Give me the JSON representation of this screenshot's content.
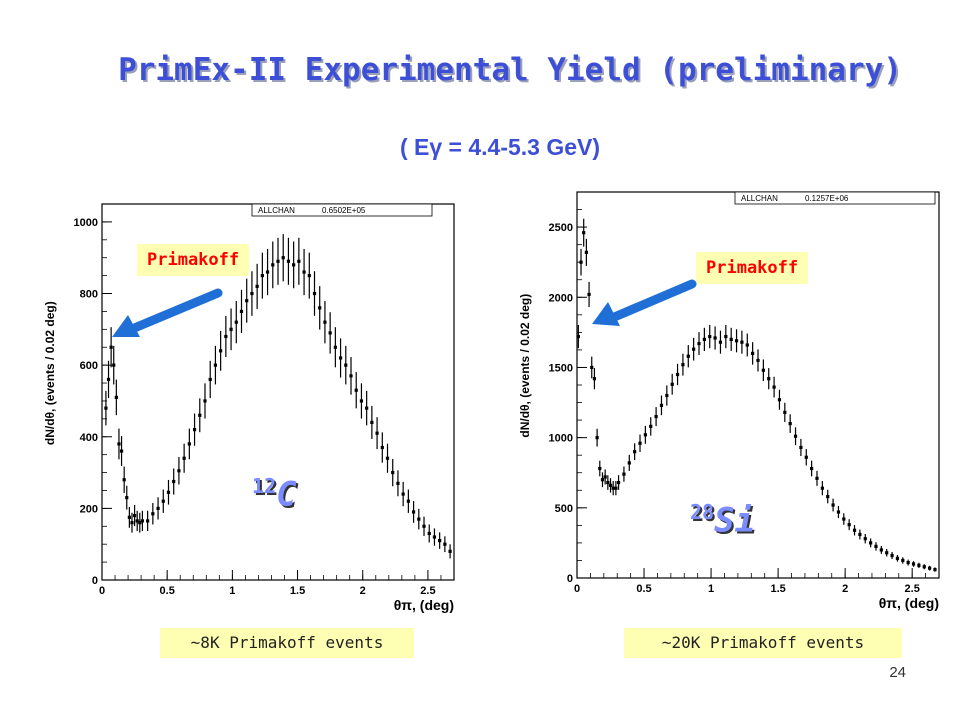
{
  "slide": {
    "title": "PrimEx-II Experimental Yield (preliminary)",
    "subtitle": "( Eγ = 4.4-5.3 GeV)",
    "page_number": "24"
  },
  "panels": [
    {
      "nucleus_mass": "12",
      "nucleus_symbol": "C",
      "primakoff_label": "Primakoff",
      "events_label": "~8K Primakoff events",
      "statbox_name": "ALLCHAN",
      "statbox_value": "0.6502E+05"
    },
    {
      "nucleus_mass": "28",
      "nucleus_symbol": "Si",
      "primakoff_label": "Primakoff",
      "events_label": "~20K Primakoff events",
      "statbox_name": "ALLCHAN",
      "statbox_value": "0.1257E+06"
    }
  ],
  "colors": {
    "title": "#3d4fd6",
    "arrow": "#1f6fd6",
    "label_bg": "#ffffb3",
    "label_text": "#ff0000"
  },
  "chart_data": [
    {
      "type": "scatter",
      "title": "",
      "xlabel": "θπ, (deg)",
      "ylabel": "dN/dθ, (events / 0.02 deg)",
      "xlim": [
        0,
        2.7
      ],
      "ylim": [
        0,
        1050
      ],
      "x_ticks": [
        "0",
        "0.5",
        "1",
        "1.5",
        "2",
        "2.5"
      ],
      "y_ticks": [
        "0",
        "200",
        "400",
        "600",
        "800",
        "1000"
      ],
      "series": [
        {
          "x": [
            0.03,
            0.05,
            0.07,
            0.09,
            0.11,
            0.13,
            0.15,
            0.17,
            0.19,
            0.21,
            0.23,
            0.25,
            0.27,
            0.29,
            0.31,
            0.35,
            0.39,
            0.43,
            0.47,
            0.51,
            0.55,
            0.59,
            0.63,
            0.67,
            0.71,
            0.75,
            0.79,
            0.83,
            0.87,
            0.91,
            0.95,
            0.99,
            1.03,
            1.07,
            1.11,
            1.15,
            1.19,
            1.23,
            1.27,
            1.31,
            1.35,
            1.39,
            1.43,
            1.47,
            1.51,
            1.55,
            1.59,
            1.63,
            1.67,
            1.71,
            1.75,
            1.79,
            1.83,
            1.87,
            1.91,
            1.95,
            1.99,
            2.03,
            2.07,
            2.11,
            2.15,
            2.19,
            2.23,
            2.27,
            2.31,
            2.35,
            2.39,
            2.43,
            2.47,
            2.51,
            2.55,
            2.59,
            2.63,
            2.67
          ],
          "y": [
            480,
            560,
            650,
            600,
            510,
            380,
            360,
            280,
            230,
            175,
            160,
            180,
            165,
            160,
            165,
            165,
            185,
            200,
            220,
            245,
            275,
            305,
            340,
            380,
            420,
            460,
            500,
            560,
            600,
            640,
            680,
            700,
            720,
            750,
            780,
            800,
            820,
            850,
            860,
            880,
            890,
            900,
            890,
            880,
            890,
            860,
            850,
            800,
            760,
            720,
            690,
            650,
            620,
            600,
            570,
            530,
            500,
            480,
            440,
            410,
            370,
            340,
            300,
            270,
            240,
            220,
            190,
            170,
            150,
            130,
            120,
            110,
            100,
            80
          ]
        }
      ]
    },
    {
      "type": "scatter",
      "title": "",
      "xlabel": "θπ, (deg)",
      "ylabel": "dN/dθ, (events / 0.02 deg)",
      "xlim": [
        0,
        2.7
      ],
      "ylim": [
        0,
        2750
      ],
      "x_ticks": [
        "0",
        "0.5",
        "1",
        "1.5",
        "2",
        "2.5"
      ],
      "y_ticks": [
        "0",
        "500",
        "1000",
        "1500",
        "2000",
        "2500"
      ],
      "series": [
        {
          "x": [
            0.01,
            0.03,
            0.05,
            0.07,
            0.09,
            0.11,
            0.13,
            0.15,
            0.17,
            0.19,
            0.21,
            0.23,
            0.25,
            0.27,
            0.29,
            0.31,
            0.35,
            0.39,
            0.43,
            0.47,
            0.51,
            0.55,
            0.59,
            0.63,
            0.67,
            0.71,
            0.75,
            0.79,
            0.83,
            0.87,
            0.91,
            0.95,
            0.99,
            1.03,
            1.07,
            1.11,
            1.15,
            1.19,
            1.23,
            1.27,
            1.31,
            1.35,
            1.39,
            1.43,
            1.47,
            1.51,
            1.55,
            1.59,
            1.63,
            1.67,
            1.71,
            1.75,
            1.79,
            1.83,
            1.87,
            1.91,
            1.95,
            1.99,
            2.03,
            2.07,
            2.11,
            2.15,
            2.19,
            2.23,
            2.27,
            2.31,
            2.35,
            2.39,
            2.43,
            2.47,
            2.51,
            2.55,
            2.59,
            2.63,
            2.67
          ],
          "y": [
            1720,
            2250,
            2460,
            2320,
            2020,
            1500,
            1420,
            1000,
            780,
            700,
            720,
            680,
            660,
            640,
            640,
            680,
            740,
            820,
            900,
            960,
            1020,
            1080,
            1150,
            1230,
            1300,
            1380,
            1450,
            1520,
            1580,
            1630,
            1670,
            1700,
            1720,
            1710,
            1680,
            1720,
            1700,
            1690,
            1680,
            1660,
            1600,
            1550,
            1480,
            1420,
            1360,
            1270,
            1180,
            1100,
            1010,
            930,
            860,
            780,
            710,
            640,
            580,
            520,
            470,
            420,
            380,
            340,
            310,
            280,
            250,
            225,
            200,
            180,
            160,
            140,
            125,
            110,
            100,
            90,
            80,
            70,
            60
          ]
        }
      ]
    }
  ]
}
